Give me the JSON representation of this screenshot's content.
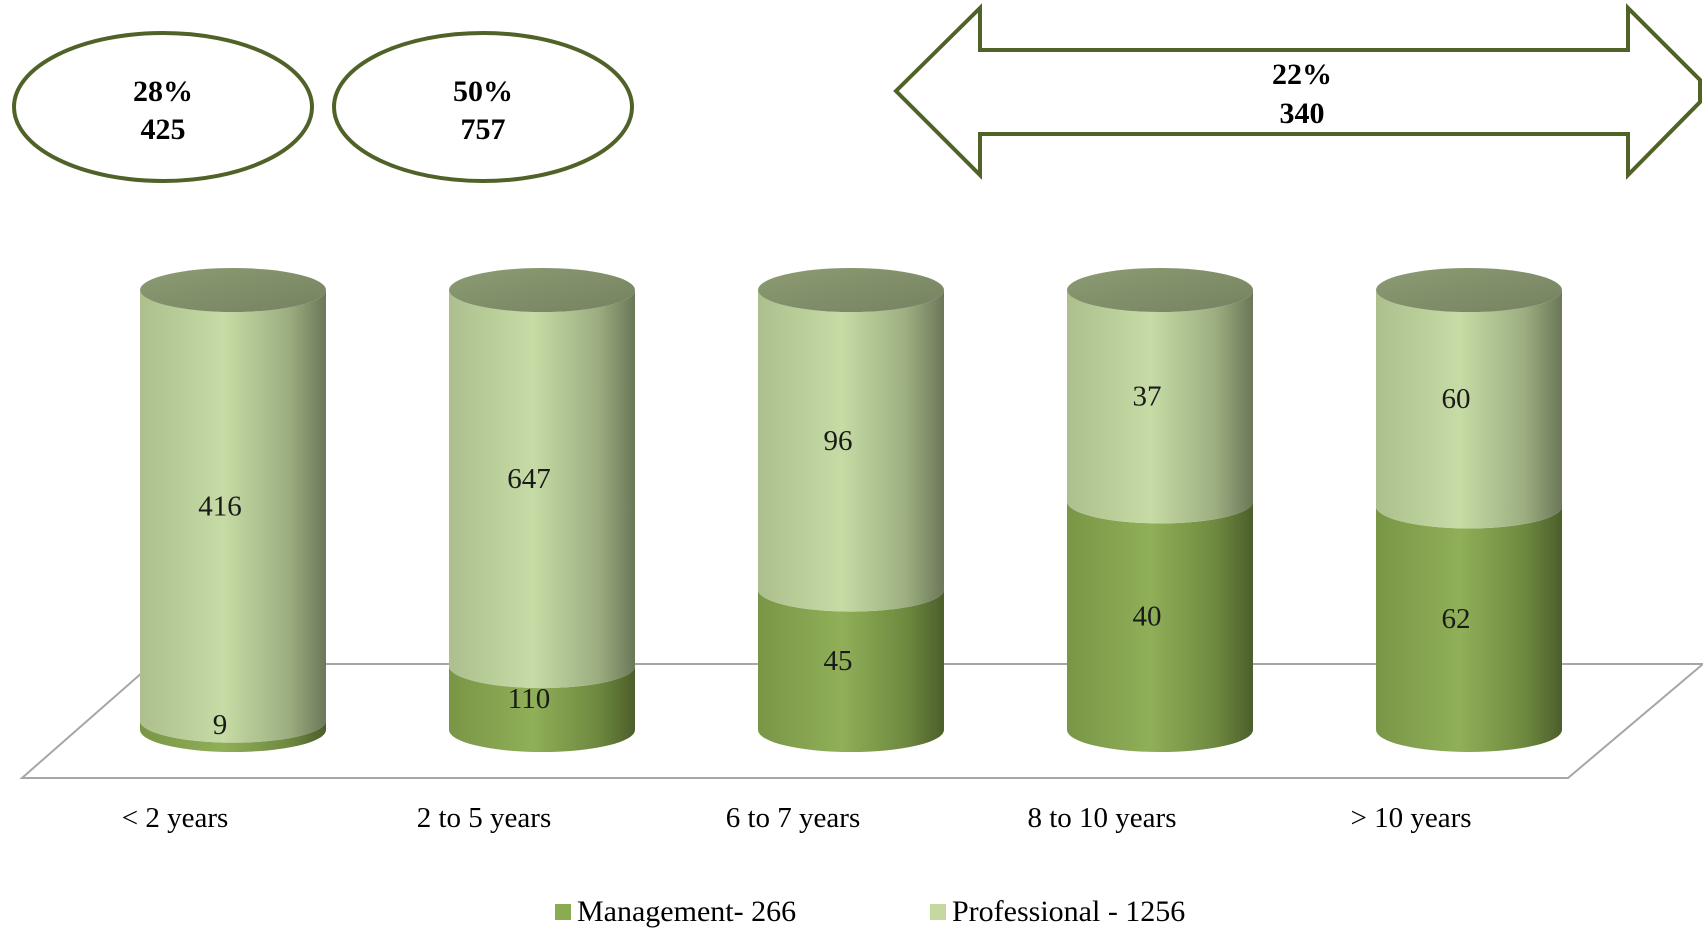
{
  "chart_data": {
    "type": "bar",
    "stacked": true,
    "style": "3d-cylinder",
    "categories": [
      "< 2 years",
      "2 to 5 years",
      "6 to 7 years",
      "8 to 10 years",
      "> 10 years"
    ],
    "series": [
      {
        "name": "Management- 266",
        "values": [
          9,
          110,
          45,
          40,
          62
        ],
        "color": "#8aab4f"
      },
      {
        "name": "Professional - 1256",
        "values": [
          416,
          647,
          96,
          37,
          60
        ],
        "color": "#c3d9a0"
      }
    ],
    "normalized": "percent-per-category",
    "grid": false,
    "legend_position": "bottom",
    "annotations": [
      {
        "label_pct": "28%",
        "label_value": "425",
        "shape": "ellipse",
        "covers": [
          "< 2 years"
        ]
      },
      {
        "label_pct": "50%",
        "label_value": "757",
        "shape": "ellipse",
        "covers": [
          "2 to 5 years"
        ]
      },
      {
        "label_pct": "22%",
        "label_value": "340",
        "shape": "double-arrow",
        "covers": [
          "6 to 7 years",
          "8 to 10 years",
          "> 10 years"
        ]
      }
    ],
    "accent_color": "#4f6228"
  }
}
